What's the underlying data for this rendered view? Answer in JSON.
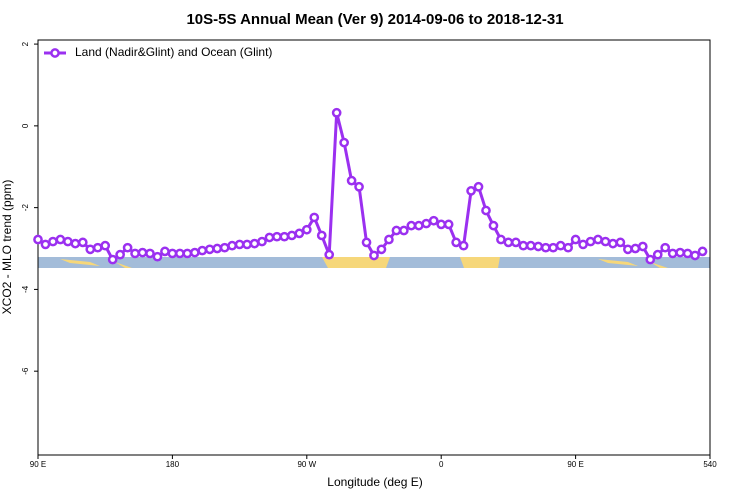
{
  "chart_data": {
    "type": "line",
    "title": "10S-5S Annual Mean (Ver 9)   2014-09-06 to 2018-12-31",
    "x_label": "Longitude (deg E)",
    "y_label": "XCO2 - MLO trend (ppm)",
    "x": [
      90,
      95,
      100,
      105,
      110,
      115,
      120,
      125,
      130,
      135,
      140,
      145,
      150,
      155,
      160,
      165,
      170,
      175,
      180,
      185,
      190,
      195,
      200,
      205,
      210,
      215,
      220,
      225,
      230,
      235,
      240,
      245,
      250,
      255,
      260,
      265,
      270,
      275,
      280,
      285,
      290,
      295,
      300,
      305,
      310,
      315,
      320,
      325,
      330,
      335,
      340,
      345,
      350,
      355,
      360,
      365,
      370,
      375,
      380,
      385,
      390,
      395,
      400,
      405,
      410,
      415,
      420,
      425,
      430,
      435,
      440,
      445,
      450,
      455,
      460,
      465,
      470,
      475,
      480,
      485,
      490,
      495,
      500,
      505,
      510,
      515,
      520,
      525,
      530,
      535
    ],
    "series": [
      {
        "name": "Land (Nadir&Glint) and Ocean (Glint)",
        "color": "#9b30f0",
        "values": [
          -2.78,
          -2.9,
          -2.83,
          -2.78,
          -2.83,
          -2.88,
          -2.85,
          -3.02,
          -2.98,
          -2.93,
          -3.27,
          -3.15,
          -2.98,
          -3.12,
          -3.1,
          -3.12,
          -3.2,
          -3.07,
          -3.12,
          -3.12,
          -3.12,
          -3.1,
          -3.05,
          -3.02,
          -3.0,
          -2.98,
          -2.93,
          -2.9,
          -2.9,
          -2.88,
          -2.83,
          -2.73,
          -2.71,
          -2.71,
          -2.68,
          -2.63,
          -2.54,
          -2.24,
          -2.68,
          -3.15,
          0.32,
          -0.41,
          -1.34,
          -1.49,
          -2.85,
          -3.17,
          -3.02,
          -2.78,
          -2.56,
          -2.56,
          -2.44,
          -2.44,
          -2.39,
          -2.32,
          -2.41,
          -2.41,
          -2.85,
          -2.93,
          -1.59,
          -1.49,
          -2.07,
          -2.44,
          -2.78,
          -2.85,
          -2.85,
          -2.93,
          -2.93,
          -2.95,
          -2.98,
          -2.98,
          -2.93,
          -2.98,
          -2.78,
          -2.9,
          -2.83,
          -2.78,
          -2.83,
          -2.88,
          -2.85,
          -3.02,
          -3.0,
          -2.95,
          -3.27,
          -3.15,
          -2.98,
          -3.12,
          -3.1,
          -3.12,
          -3.17,
          -3.07
        ]
      }
    ],
    "xlim": [
      90,
      540
    ],
    "xticks": [
      {
        "value": 90,
        "label": "90 E"
      },
      180,
      {
        "value": 270,
        "label": "90 W"
      },
      {
        "value": 360,
        "label": "0"
      },
      {
        "value": 450,
        "label": "90 E"
      },
      540
    ],
    "ylim": [
      -8.05,
      2.1
    ],
    "yticks": [
      2,
      0,
      -2,
      -4,
      -6
    ],
    "legend": "top-left"
  }
}
